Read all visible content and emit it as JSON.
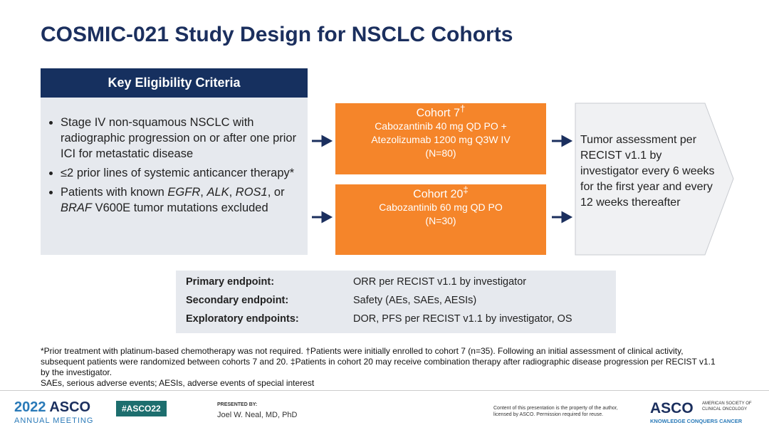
{
  "title": "COSMIC-021 Study Design for NSCLC Cohorts",
  "eligibility": {
    "header": "Key Eligibility Criteria",
    "bullets": [
      [
        {
          "text": "Stage IV non-squamous NSCLC with radiographic progression on or after one prior ICI for metastatic disease"
        }
      ],
      [
        {
          "text": "≤2 prior lines of systemic anticancer therapy*"
        }
      ],
      [
        {
          "text": "Patients with known "
        },
        {
          "text": "EGFR",
          "italic": true
        },
        {
          "text": ", "
        },
        {
          "text": "ALK",
          "italic": true
        },
        {
          "text": ", "
        },
        {
          "text": "ROS1",
          "italic": true
        },
        {
          "text": ", or "
        },
        {
          "text": "BRAF",
          "italic": true
        },
        {
          "text": " V600E tumor mutations excluded"
        }
      ]
    ]
  },
  "cohorts": [
    {
      "name": "Cohort 7",
      "mark": "†",
      "lines": [
        "Cabozantinib 40 mg QD PO +",
        "Atezolizumab 1200 mg Q3W IV",
        "(N=80)"
      ]
    },
    {
      "name": "Cohort 20",
      "mark": "‡",
      "lines": [
        "Cabozantinib 60 mg QD PO",
        "(N=30)"
      ]
    }
  ],
  "assessment": "Tumor assessment per RECIST v1.1 by investigator every 6 weeks for the first year and every 12 weeks thereafter",
  "endpoints": [
    [
      "Primary endpoint:",
      "ORR per RECIST v1.1 by investigator"
    ],
    [
      "Secondary endpoint:",
      "Safety (AEs, SAEs, AESIs)"
    ],
    [
      "Exploratory endpoints:",
      "DOR, PFS per RECIST v1.1 by investigator, OS"
    ]
  ],
  "footnotes": [
    "*Prior treatment with platinum-based chemotherapy was not required. †Patients were initially enrolled to cohort 7 (n=35). Following an initial assessment of clinical activity, subsequent patients were randomized between cohorts 7 and 20. ‡Patients in cohort 20 may receive combination therapy after radiographic disease progression per RECIST v1.1 by the investigator.",
    "SAEs, serious adverse events; AESIs, adverse events of special interest"
  ],
  "footer": {
    "meeting_year": "2022",
    "meeting_brand": "ASCO",
    "meeting_name": "ANNUAL MEETING",
    "hashtag": "#ASCO22",
    "presented_by": "PRESENTED BY:",
    "presenter": "Joel W. Neal, MD, PhD",
    "copyright": "Content of this presentation is the property of the author, licensed by ASCO. Permission required for reuse.",
    "org_brand": "ASCO",
    "org_name": "AMERICAN SOCIETY OF CLINICAL ONCOLOGY",
    "org_tagline": "KNOWLEDGE CONQUERS CANCER"
  }
}
